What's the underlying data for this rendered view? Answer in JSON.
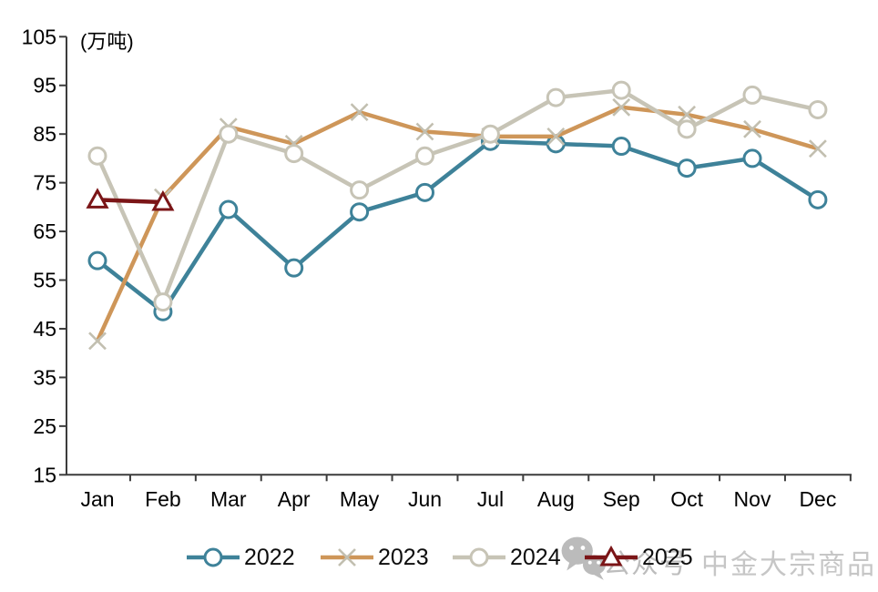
{
  "chart_data": {
    "type": "line",
    "title": "",
    "unit_label": "(万吨)",
    "categories": [
      "Jan",
      "Feb",
      "Mar",
      "Apr",
      "May",
      "Jun",
      "Jul",
      "Aug",
      "Sep",
      "Oct",
      "Nov",
      "Dec"
    ],
    "xlabel": "",
    "ylabel": "(万吨)",
    "ylim": [
      15,
      105
    ],
    "ytick_step": 10,
    "grid": false,
    "legend_position": "bottom",
    "axis_color": "#3c3c3c",
    "series": [
      {
        "name": "2022",
        "color": "#3E8299",
        "marker": "circle",
        "marker_color": "#3E8299",
        "values": [
          59,
          48.5,
          69.5,
          57.5,
          69,
          73,
          83.5,
          83,
          82.5,
          78,
          80,
          71.5
        ]
      },
      {
        "name": "2023",
        "color": "#CE9659",
        "marker": "x",
        "marker_color": "#C2BFB0",
        "values": [
          42.5,
          72,
          86.5,
          83,
          89.5,
          85.5,
          84.5,
          84.5,
          90.5,
          89,
          86,
          82
        ]
      },
      {
        "name": "2024",
        "color": "#C7C4B6",
        "marker": "circle",
        "marker_color": "#C7C4B6",
        "values": [
          80.5,
          50.5,
          85,
          81,
          73.5,
          80.5,
          85,
          92.5,
          94,
          86,
          93,
          90
        ]
      },
      {
        "name": "2025",
        "color": "#7B1517",
        "marker": "triangle",
        "marker_color": "#7B1517",
        "values": [
          71.5,
          71,
          null,
          null,
          null,
          null,
          null,
          null,
          null,
          null,
          null,
          null
        ]
      }
    ]
  },
  "watermark": {
    "icon": "wechat-icon",
    "label": "公众号",
    "brand": "中金大宗商品"
  }
}
